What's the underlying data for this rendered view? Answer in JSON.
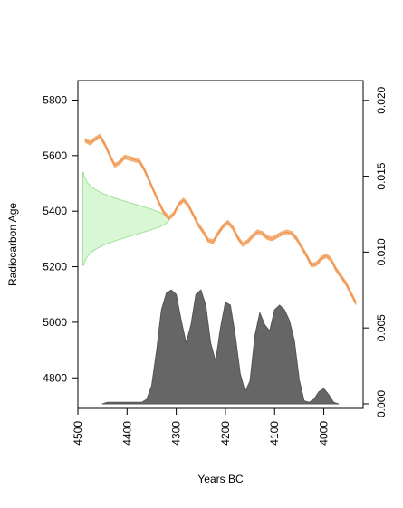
{
  "chart_data": {
    "type": "area",
    "title": "",
    "xlabel": "Years BC",
    "ylabel": "Radiocarbon Age",
    "x_reversed": true,
    "xlim": [
      4500,
      3920
    ],
    "ylim_left": [
      4690,
      5870
    ],
    "ylim_right": [
      -0.0003,
      0.0213
    ],
    "x_ticks": [
      4500,
      4400,
      4300,
      4200,
      4100,
      4000
    ],
    "y_ticks_left": [
      4800,
      5000,
      5200,
      5400,
      5600,
      5800
    ],
    "y_ticks_right": [
      0.0,
      0.005,
      0.01,
      0.015,
      0.02
    ],
    "y_tick_labels_right": [
      "0.000",
      "0.005",
      "0.010",
      "0.015",
      "0.020"
    ],
    "calibration_curve": {
      "color": "#f4a460",
      "band_halfwidth": 7,
      "x": [
        4485,
        4475,
        4465,
        4455,
        4445,
        4435,
        4425,
        4415,
        4405,
        4395,
        4385,
        4375,
        4365,
        4355,
        4345,
        4335,
        4325,
        4315,
        4305,
        4295,
        4285,
        4275,
        4265,
        4255,
        4245,
        4235,
        4225,
        4215,
        4205,
        4195,
        4185,
        4175,
        4165,
        4155,
        4145,
        4135,
        4125,
        4115,
        4105,
        4095,
        4085,
        4075,
        4065,
        4055,
        4045,
        4035,
        4025,
        4015,
        4005,
        3995,
        3985,
        3975,
        3965,
        3955,
        3945,
        3935
      ],
      "y": [
        5655,
        5645,
        5660,
        5670,
        5640,
        5600,
        5565,
        5575,
        5595,
        5590,
        5585,
        5580,
        5550,
        5510,
        5470,
        5430,
        5395,
        5375,
        5390,
        5425,
        5440,
        5420,
        5385,
        5350,
        5325,
        5295,
        5290,
        5320,
        5345,
        5360,
        5340,
        5305,
        5280,
        5290,
        5310,
        5325,
        5320,
        5305,
        5300,
        5310,
        5320,
        5325,
        5320,
        5300,
        5270,
        5240,
        5205,
        5210,
        5230,
        5240,
        5225,
        5190,
        5165,
        5140,
        5105,
        5070
      ]
    },
    "radiocarbon_density": {
      "color_fill": "#d9f7d4",
      "color_line": "#9fe09a",
      "peak_age": 5370,
      "age_min": 5205,
      "age_max": 5540,
      "sd": 55,
      "baseline_year": 4490,
      "peak_width_years": 175
    },
    "calibrated_density": {
      "color": "#666666",
      "x": [
        4450,
        4440,
        4420,
        4400,
        4390,
        4380,
        4370,
        4360,
        4350,
        4340,
        4330,
        4320,
        4310,
        4300,
        4290,
        4280,
        4270,
        4260,
        4250,
        4240,
        4230,
        4220,
        4210,
        4200,
        4190,
        4180,
        4170,
        4160,
        4150,
        4140,
        4130,
        4120,
        4110,
        4100,
        4090,
        4080,
        4070,
        4060,
        4050,
        4040,
        4030,
        4020,
        4010,
        4000,
        3990,
        3980,
        3970
      ],
      "y": [
        0.0,
        0.0001,
        0.0001,
        0.0001,
        0.0001,
        0.0001,
        0.0001,
        0.0003,
        0.0012,
        0.0035,
        0.0062,
        0.0073,
        0.0075,
        0.0072,
        0.0055,
        0.004,
        0.0052,
        0.0072,
        0.0075,
        0.0065,
        0.004,
        0.0028,
        0.005,
        0.0067,
        0.0065,
        0.0045,
        0.002,
        0.0008,
        0.0015,
        0.0045,
        0.006,
        0.0052,
        0.0048,
        0.0062,
        0.0065,
        0.0062,
        0.0055,
        0.0042,
        0.0016,
        0.0002,
        0.0001,
        0.0003,
        0.0008,
        0.001,
        0.0006,
        0.0001,
        0.0
      ]
    }
  }
}
